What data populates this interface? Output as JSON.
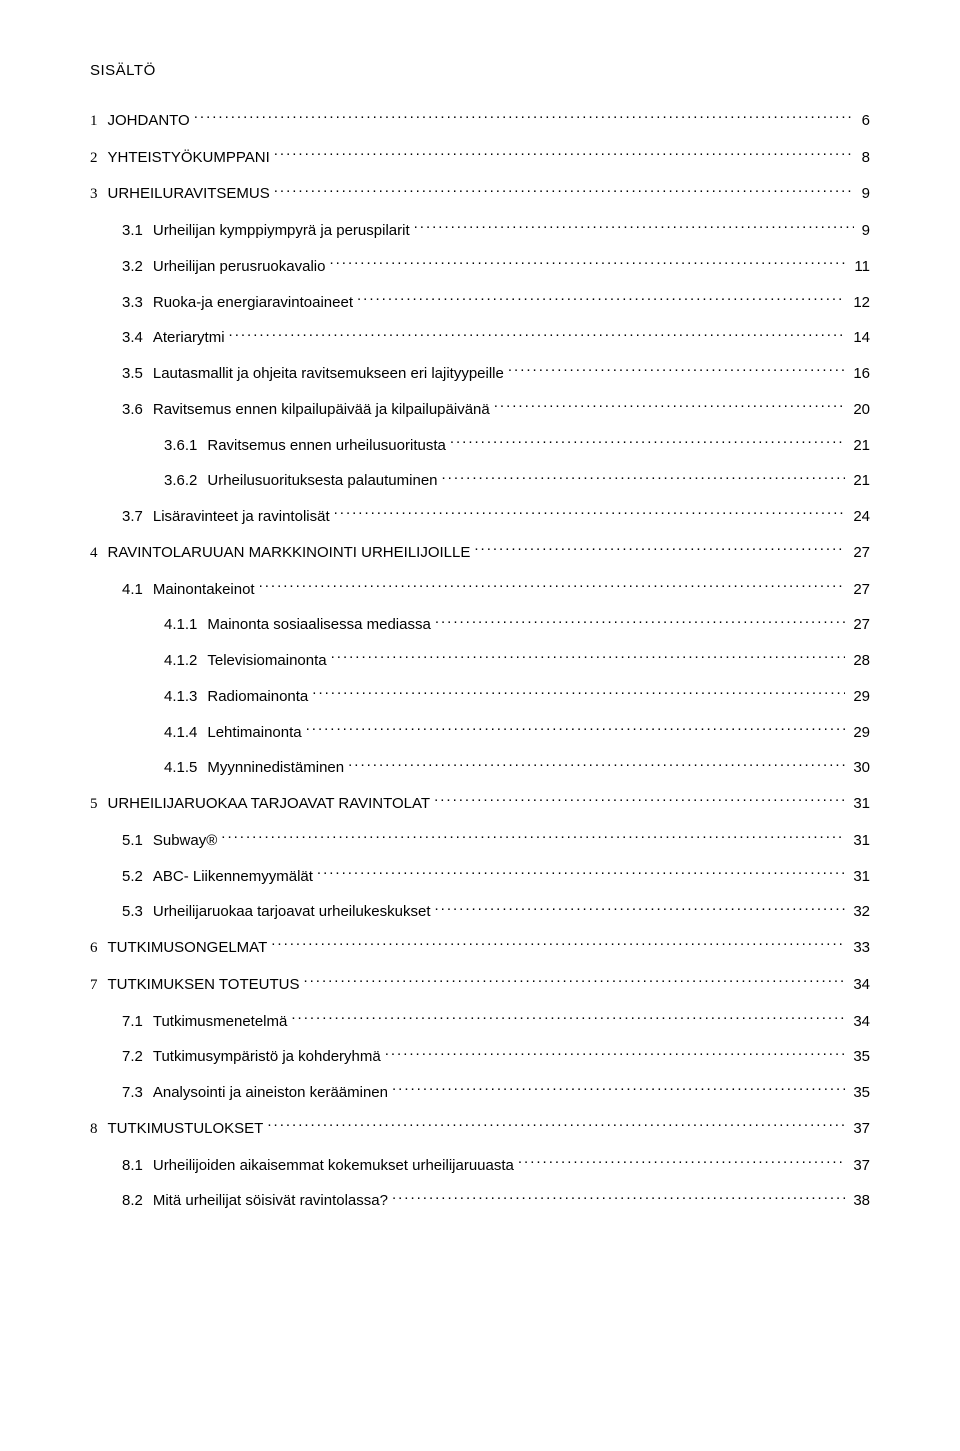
{
  "title": "SISÄLTÖ",
  "toc": [
    {
      "num": "1",
      "label": "JOHDANTO",
      "page": "6",
      "level": 1,
      "numFont": "serif",
      "gapBefore": false
    },
    {
      "num": "2",
      "label": "YHTEISTYÖKUMPPANI",
      "page": "8",
      "level": 1,
      "numFont": "serif",
      "gapBefore": true
    },
    {
      "num": "3",
      "label": "URHEILURAVITSEMUS",
      "page": "9",
      "level": 1,
      "numFont": "serif",
      "gapBefore": true
    },
    {
      "num": "3.1",
      "label": "Urheilijan kymppiympyrä ja peruspilarit",
      "page": "9",
      "level": 2,
      "numFont": "arial",
      "gapBefore": true
    },
    {
      "num": "3.2",
      "label": "Urheilijan perusruokavalio",
      "page": "11",
      "level": 2,
      "numFont": "arial",
      "gapBefore": true
    },
    {
      "num": "3.3",
      "label": "Ruoka-ja energiaravintoaineet",
      "page": "12",
      "level": 2,
      "numFont": "arial",
      "gapBefore": true
    },
    {
      "num": "3.4",
      "label": "Ateriarytmi",
      "page": "14",
      "level": 2,
      "numFont": "arial",
      "gapBefore": true
    },
    {
      "num": "3.5",
      "label": "Lautasmallit ja ohjeita ravitsemukseen eri lajityypeille",
      "page": "16",
      "level": 2,
      "numFont": "arial",
      "gapBefore": true
    },
    {
      "num": "3.6",
      "label": "Ravitsemus ennen kilpailupäivää ja kilpailupäivänä",
      "page": "20",
      "level": 2,
      "numFont": "arial",
      "gapBefore": true
    },
    {
      "num": "3.6.1",
      "label": "Ravitsemus ennen urheilusuoritusta",
      "page": "21",
      "level": 3,
      "numFont": "arial",
      "gapBefore": true
    },
    {
      "num": "3.6.2",
      "label": "Urheilusuorituksesta palautuminen",
      "page": "21",
      "level": 3,
      "numFont": "arial",
      "gapBefore": true
    },
    {
      "num": "3.7",
      "label": "Lisäravinteet ja ravintolisät",
      "page": "24",
      "level": 2,
      "numFont": "arial",
      "gapBefore": true
    },
    {
      "num": "4",
      "label": "RAVINTOLARUUAN MARKKINOINTI URHEILIJOILLE",
      "page": "27",
      "level": 1,
      "numFont": "serif",
      "gapBefore": true
    },
    {
      "num": "4.1",
      "label": "Mainontakeinot",
      "page": "27",
      "level": 2,
      "numFont": "arial",
      "gapBefore": true
    },
    {
      "num": "4.1.1",
      "label": "Mainonta sosiaalisessa mediassa",
      "page": "27",
      "level": 3,
      "numFont": "arial",
      "gapBefore": true
    },
    {
      "num": "4.1.2",
      "label": "Televisiomainonta",
      "page": "28",
      "level": 3,
      "numFont": "arial",
      "gapBefore": true
    },
    {
      "num": "4.1.3",
      "label": "Radiomainonta",
      "page": "29",
      "level": 3,
      "numFont": "arial",
      "gapBefore": true
    },
    {
      "num": "4.1.4",
      "label": "Lehtimainonta",
      "page": "29",
      "level": 3,
      "numFont": "arial",
      "gapBefore": true
    },
    {
      "num": "4.1.5",
      "label": "Myynninedistäminen",
      "page": "30",
      "level": 3,
      "numFont": "arial",
      "gapBefore": true
    },
    {
      "num": "5",
      "label": "URHEILIJARUOKAA TARJOAVAT RAVINTOLAT",
      "page": "31",
      "level": 1,
      "numFont": "serif",
      "gapBefore": true
    },
    {
      "num": "5.1",
      "label": "Subway®",
      "page": "31",
      "level": 2,
      "numFont": "arial",
      "gapBefore": true
    },
    {
      "num": "5.2",
      "label": "ABC- Liikennemyymälät",
      "page": "31",
      "level": 2,
      "numFont": "arial",
      "gapBefore": true
    },
    {
      "num": "5.3",
      "label": "Urheilijaruokaa tarjoavat urheilukeskukset",
      "page": "32",
      "level": 2,
      "numFont": "arial",
      "gapBefore": true
    },
    {
      "num": "6",
      "label": "TUTKIMUSONGELMAT",
      "page": "33",
      "level": 1,
      "numFont": "serif",
      "gapBefore": true
    },
    {
      "num": "7",
      "label": "TUTKIMUKSEN TOTEUTUS",
      "page": "34",
      "level": 1,
      "numFont": "serif",
      "gapBefore": true
    },
    {
      "num": "7.1",
      "label": "Tutkimusmenetelmä",
      "page": "34",
      "level": 2,
      "numFont": "arial",
      "gapBefore": true
    },
    {
      "num": "7.2",
      "label": "Tutkimusympäristö ja kohderyhmä",
      "page": "35",
      "level": 2,
      "numFont": "arial",
      "gapBefore": true
    },
    {
      "num": "7.3",
      "label": "Analysointi ja aineiston kerääminen",
      "page": "35",
      "level": 2,
      "numFont": "arial",
      "gapBefore": true
    },
    {
      "num": "8",
      "label": "TUTKIMUSTULOKSET",
      "page": "37",
      "level": 1,
      "numFont": "serif",
      "gapBefore": true
    },
    {
      "num": "8.1",
      "label": "Urheilijoiden aikaisemmat kokemukset urheilijaruuasta",
      "page": "37",
      "level": 2,
      "numFont": "arial",
      "gapBefore": true
    },
    {
      "num": "8.2",
      "label": "Mitä urheilijat söisivät ravintolassa?",
      "page": "38",
      "level": 2,
      "numFont": "arial",
      "gapBefore": true
    }
  ]
}
